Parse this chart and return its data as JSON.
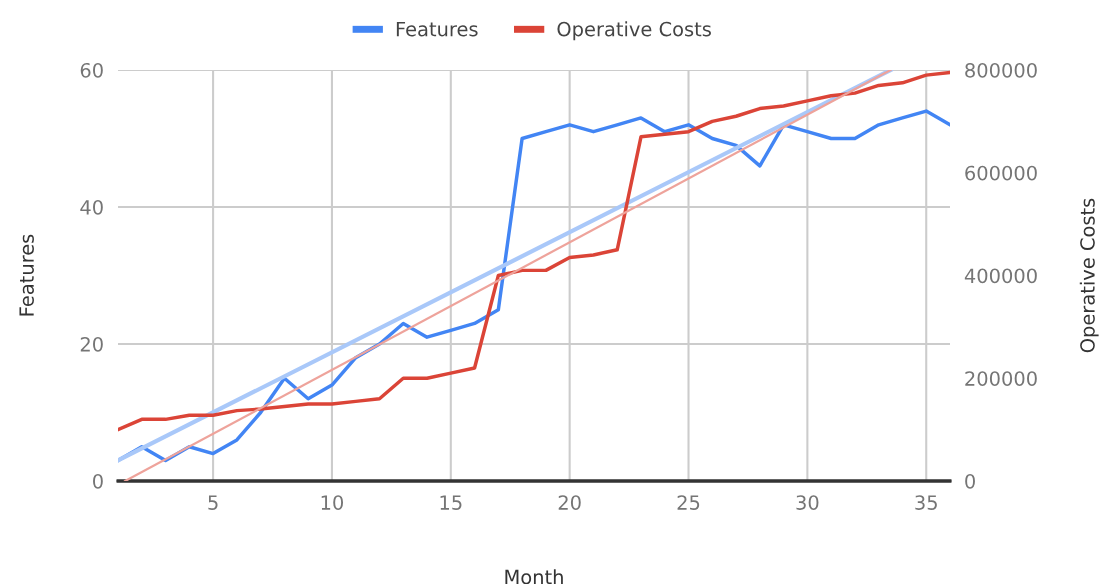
{
  "chart_data": {
    "type": "line",
    "xlabel": "Month",
    "ylabel": "Features",
    "y2label": "Operative Costs",
    "x": [
      1,
      2,
      3,
      4,
      5,
      6,
      7,
      8,
      9,
      10,
      11,
      12,
      13,
      14,
      15,
      16,
      17,
      18,
      19,
      20,
      21,
      22,
      23,
      24,
      25,
      26,
      27,
      28,
      29,
      30,
      31,
      32,
      33,
      34,
      35,
      36
    ],
    "series": [
      {
        "name": "Features",
        "color": "#4285f4",
        "values": [
          3,
          5,
          3,
          5,
          4,
          6,
          10,
          15,
          12,
          14,
          18,
          20,
          23,
          21,
          22,
          23,
          25,
          50,
          51,
          52,
          51,
          52,
          53,
          51,
          52,
          50,
          49,
          46,
          52,
          51,
          50,
          50,
          52,
          53,
          54,
          52
        ]
      },
      {
        "name": "Operative Costs",
        "color": "#db4437",
        "axis": "y2",
        "values": [
          100000,
          120000,
          120000,
          128000,
          128000,
          137000,
          140000,
          145000,
          150000,
          150000,
          155000,
          160000,
          200000,
          200000,
          210000,
          220000,
          400000,
          410000,
          410000,
          435000,
          440000,
          450000,
          670000,
          675000,
          680000,
          700000,
          710000,
          725000,
          730000,
          740000,
          750000,
          755000,
          770000,
          775000,
          790000,
          795000
        ]
      },
      {
        "type": "line",
        "color": "#a9c8f9",
        "x": [
          1,
          33.5
        ],
        "values": [
          3,
          60
        ]
      },
      {
        "type": "line",
        "color": "#eea39b",
        "axis": "y2",
        "x": [
          1.3,
          33.5
        ],
        "values": [
          0,
          800000
        ]
      }
    ],
    "xlim": [
      1,
      36
    ],
    "xticks": [
      5,
      10,
      15,
      20,
      25,
      30,
      35
    ],
    "ylim": [
      0,
      60
    ],
    "yticks": [
      0,
      20,
      40,
      60
    ],
    "y2lim": [
      0,
      800000
    ],
    "y2ticks": [
      0,
      200000,
      400000,
      600000,
      800000
    ],
    "grid": true,
    "legend": "top",
    "marker": "none",
    "line_style": "solid"
  }
}
